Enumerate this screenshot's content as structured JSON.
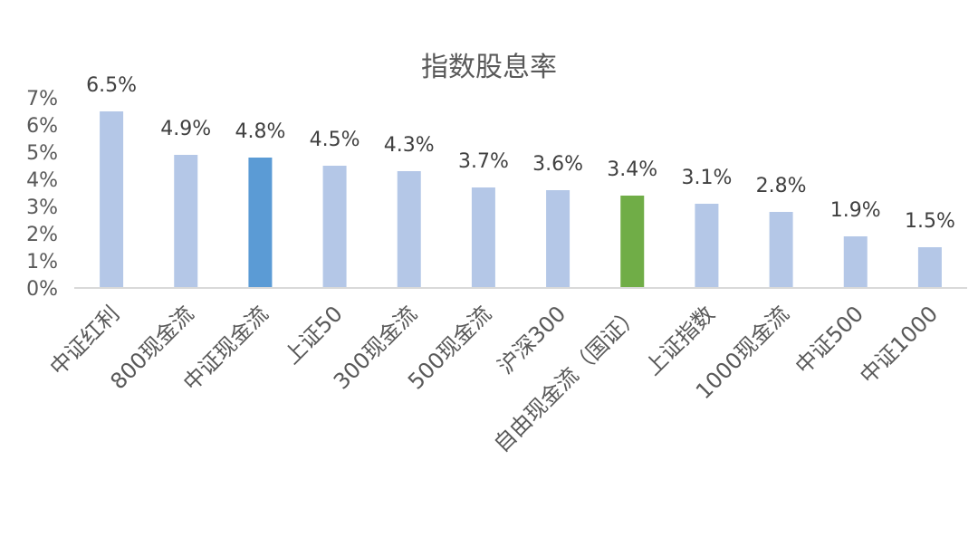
{
  "chart_data": {
    "type": "bar",
    "title": "指数股息率",
    "categories": [
      "中证红利",
      "800现金流",
      "中证现金流",
      "上证50",
      "300现金流",
      "500现金流",
      "沪深300",
      "自由现金流（国证）",
      "上证指数",
      "1000现金流",
      "中证500",
      "中证1000"
    ],
    "values": [
      6.5,
      4.9,
      4.8,
      4.5,
      4.3,
      3.7,
      3.6,
      3.4,
      3.1,
      2.8,
      1.9,
      1.5
    ],
    "data_labels": [
      "6.5%",
      "4.9%",
      "4.8%",
      "4.5%",
      "4.3%",
      "3.7%",
      "3.6%",
      "3.4%",
      "3.1%",
      "2.8%",
      "1.9%",
      "1.5%"
    ],
    "y_ticks": [
      "0%",
      "1%",
      "2%",
      "3%",
      "4%",
      "5%",
      "6%",
      "7%"
    ],
    "ylim": [
      0,
      7
    ],
    "grid": false,
    "legend": false,
    "bar_colors": [
      "#b4c7e7",
      "#b4c7e7",
      "#5b9bd5",
      "#b4c7e7",
      "#b4c7e7",
      "#b4c7e7",
      "#b4c7e7",
      "#70ad47",
      "#b4c7e7",
      "#b4c7e7",
      "#b4c7e7",
      "#b4c7e7"
    ],
    "axis_color": "#d9d9d9"
  }
}
